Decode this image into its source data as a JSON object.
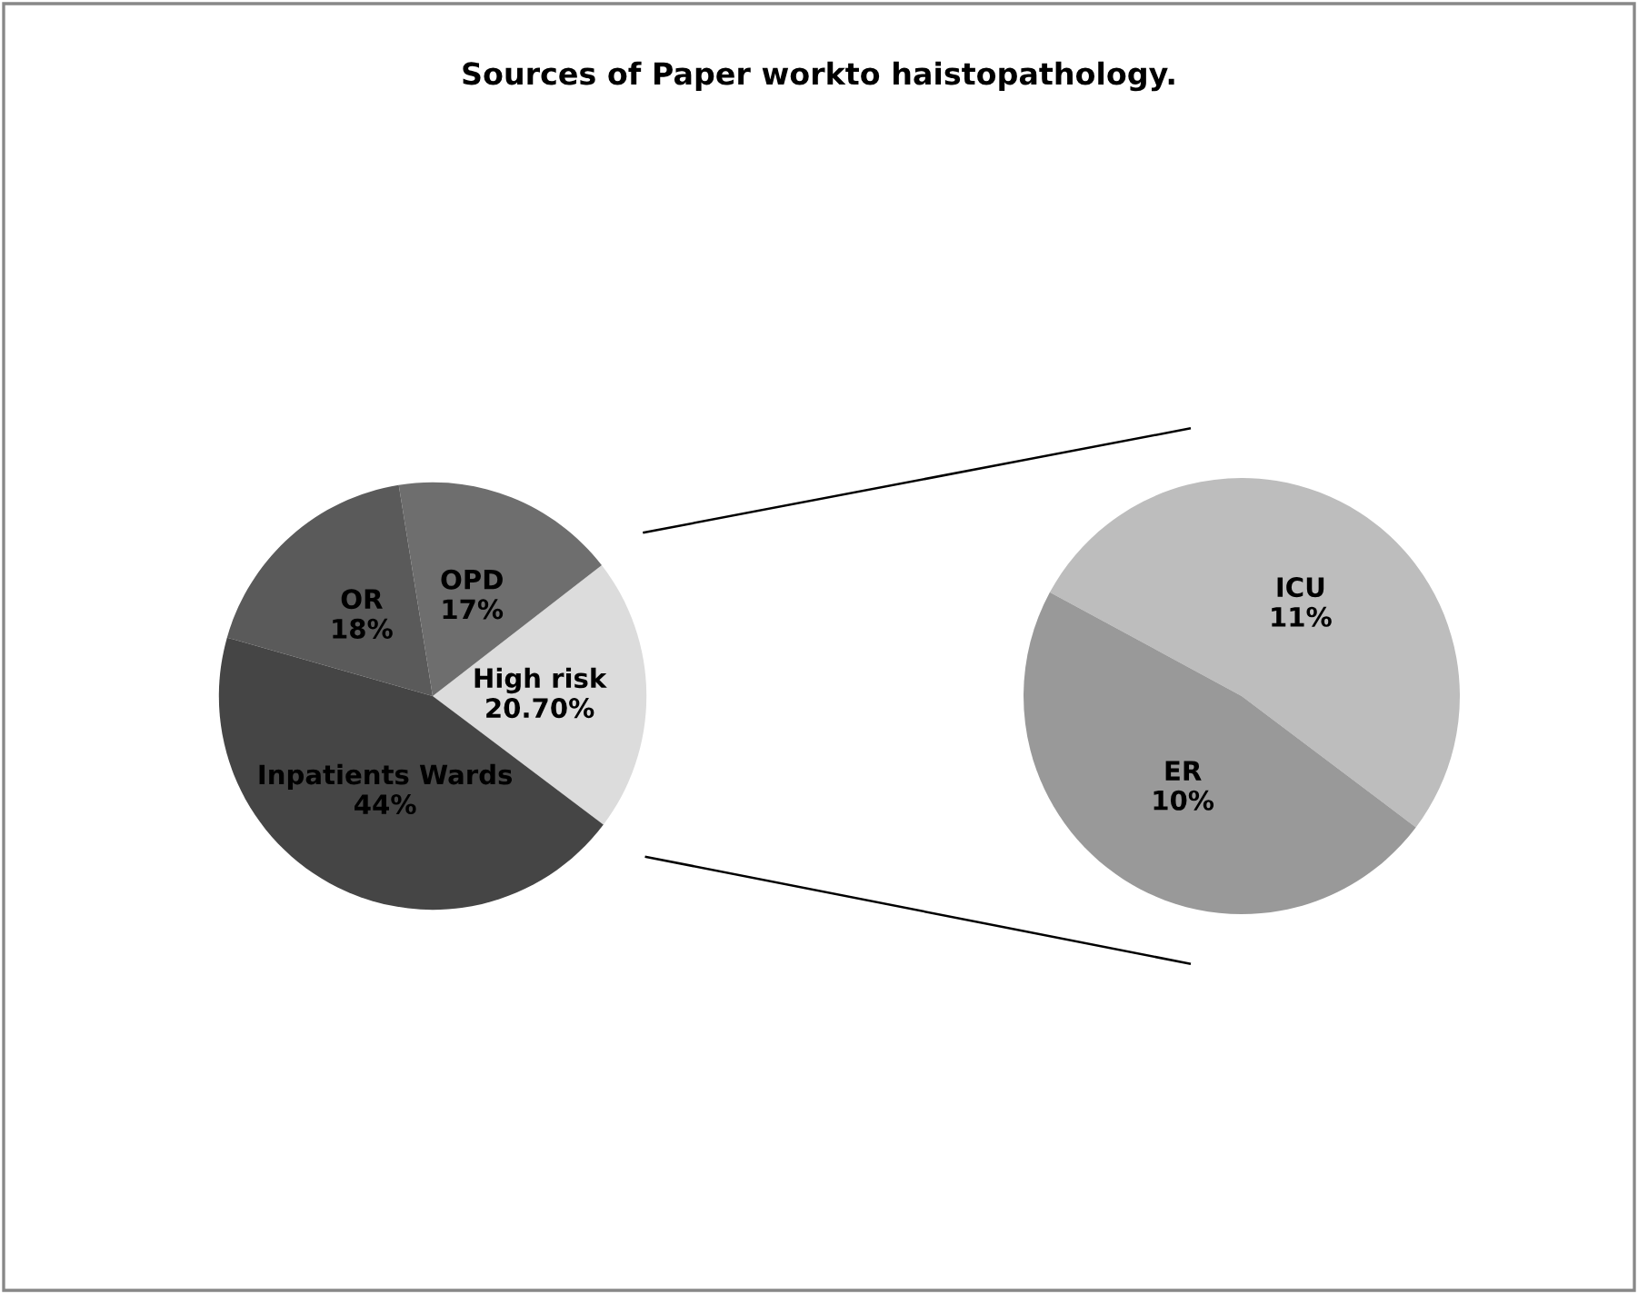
{
  "chart_data": [
    {
      "type": "pie",
      "title": "Sources of Paper workto haistopathology.",
      "categories": [
        "High risk",
        "OPD",
        "OR",
        "Inpatients Wards"
      ],
      "values": [
        20.7,
        17,
        18,
        44
      ],
      "value_labels": [
        "20.70%",
        "17%",
        "18%",
        "44%"
      ],
      "colors": [
        "#dcdcdc",
        "#6e6e6e",
        "#5a5a5a",
        "#454545"
      ]
    },
    {
      "type": "pie",
      "categories": [
        "ICU",
        "ER"
      ],
      "values": [
        11,
        10
      ],
      "value_labels": [
        "11%",
        "10%"
      ],
      "colors": [
        "#bdbdbd",
        "#999999"
      ]
    }
  ]
}
